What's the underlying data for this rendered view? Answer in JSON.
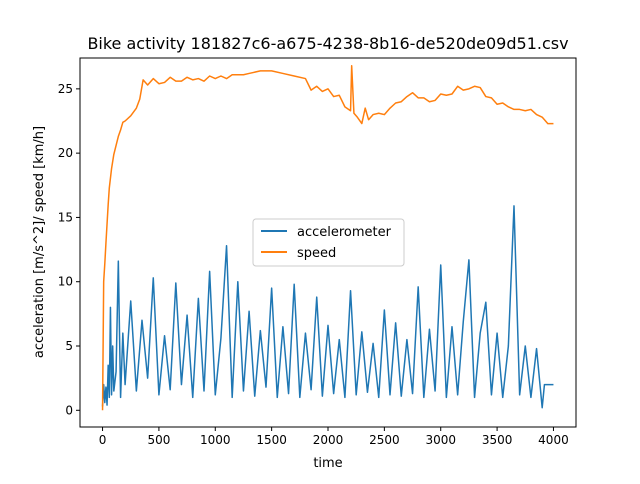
{
  "chart_data": {
    "type": "line",
    "title": "Bike activity 181827c6-a675-4238-8b16-de520de09d51.csv",
    "xlabel": "time",
    "ylabel": "acceleration [m/s^2]/ speed [km/h]",
    "xlim": [
      -200,
      4200
    ],
    "ylim": [
      -1.3,
      27.4
    ],
    "x_ticks": [
      0,
      500,
      1000,
      1500,
      2000,
      2500,
      3000,
      3500,
      4000
    ],
    "y_ticks": [
      0,
      5,
      10,
      15,
      20,
      25
    ],
    "grid": false,
    "legend_position": "center",
    "series": [
      {
        "name": "accelerometer",
        "color": "#1f77b4",
        "x": [
          0,
          10,
          20,
          30,
          40,
          50,
          60,
          70,
          80,
          90,
          100,
          120,
          140,
          160,
          180,
          200,
          250,
          300,
          350,
          400,
          450,
          500,
          550,
          600,
          650,
          700,
          750,
          800,
          850,
          900,
          950,
          1000,
          1050,
          1100,
          1150,
          1200,
          1250,
          1300,
          1350,
          1400,
          1450,
          1500,
          1550,
          1600,
          1650,
          1700,
          1750,
          1800,
          1850,
          1900,
          1950,
          2000,
          2050,
          2100,
          2150,
          2200,
          2250,
          2300,
          2350,
          2400,
          2450,
          2500,
          2550,
          2600,
          2650,
          2700,
          2750,
          2800,
          2850,
          2900,
          2950,
          3000,
          3050,
          3100,
          3150,
          3200,
          3250,
          3300,
          3350,
          3400,
          3450,
          3500,
          3550,
          3600,
          3650,
          3700,
          3750,
          3800,
          3850,
          3900,
          3920,
          3950,
          4000
        ],
        "values": [
          0.3,
          2.0,
          0.6,
          1.8,
          0.4,
          3.5,
          1.0,
          8.0,
          1.2,
          5.0,
          1.5,
          3.0,
          11.6,
          1.0,
          6.0,
          2.0,
          8.5,
          1.5,
          7.0,
          2.5,
          10.3,
          1.2,
          5.8,
          1.6,
          9.9,
          2.0,
          7.4,
          1.0,
          8.7,
          1.5,
          10.8,
          1.2,
          5.6,
          12.8,
          1.0,
          10.0,
          1.5,
          7.7,
          1.1,
          6.2,
          1.8,
          9.5,
          1.0,
          6.5,
          1.3,
          9.8,
          1.0,
          6.0,
          1.6,
          8.8,
          1.1,
          6.6,
          1.3,
          5.5,
          1.0,
          9.3,
          1.2,
          6.1,
          1.4,
          5.2,
          1.0,
          7.8,
          1.2,
          6.8,
          1.1,
          5.5,
          1.3,
          9.6,
          1.0,
          6.3,
          1.5,
          11.3,
          1.0,
          6.5,
          1.2,
          6.9,
          11.7,
          1.0,
          6.0,
          8.4,
          1.2,
          6.0,
          1.0,
          5.0,
          15.9,
          1.2,
          5.0,
          1.0,
          4.8,
          0.2,
          2.0,
          2.0,
          2.0
        ]
      },
      {
        "name": "speed",
        "color": "#ff7f0e",
        "x": [
          0,
          5,
          10,
          20,
          30,
          40,
          50,
          60,
          80,
          100,
          120,
          140,
          160,
          180,
          200,
          250,
          300,
          330,
          360,
          400,
          450,
          500,
          550,
          600,
          650,
          700,
          750,
          800,
          850,
          900,
          950,
          1000,
          1050,
          1100,
          1150,
          1200,
          1250,
          1300,
          1400,
          1500,
          1600,
          1700,
          1800,
          1850,
          1900,
          1950,
          2000,
          2050,
          2100,
          2150,
          2200,
          2210,
          2230,
          2260,
          2300,
          2330,
          2360,
          2400,
          2450,
          2500,
          2550,
          2600,
          2650,
          2700,
          2750,
          2800,
          2850,
          2900,
          2950,
          3000,
          3050,
          3100,
          3150,
          3200,
          3250,
          3300,
          3350,
          3400,
          3450,
          3500,
          3550,
          3600,
          3650,
          3700,
          3750,
          3800,
          3850,
          3900,
          3950,
          4000
        ],
        "values": [
          0.0,
          5.0,
          10.0,
          11.4,
          13.0,
          14.5,
          16.0,
          17.3,
          18.8,
          19.9,
          20.6,
          21.3,
          21.8,
          22.4,
          22.5,
          22.9,
          23.5,
          24.2,
          25.7,
          25.3,
          25.8,
          25.4,
          25.5,
          25.9,
          25.6,
          25.6,
          25.9,
          25.7,
          25.8,
          25.6,
          26.0,
          25.8,
          26.0,
          25.8,
          26.1,
          26.1,
          26.1,
          26.2,
          26.4,
          26.4,
          26.2,
          26.0,
          25.8,
          24.9,
          25.2,
          24.8,
          25.0,
          24.4,
          24.5,
          23.6,
          23.3,
          26.8,
          23.1,
          22.8,
          22.3,
          23.5,
          22.6,
          23.0,
          23.1,
          23.0,
          23.5,
          23.9,
          24.0,
          24.4,
          24.7,
          24.3,
          24.3,
          24.0,
          24.1,
          24.6,
          24.5,
          24.6,
          25.2,
          24.9,
          25.0,
          25.2,
          25.1,
          24.4,
          24.3,
          23.8,
          23.9,
          23.6,
          23.4,
          23.4,
          23.3,
          23.4,
          23.0,
          22.8,
          22.3,
          22.3
        ]
      }
    ]
  }
}
